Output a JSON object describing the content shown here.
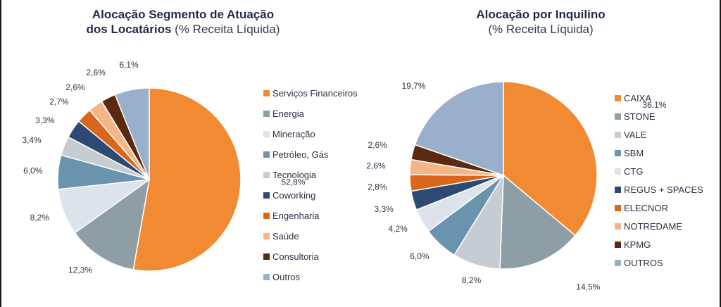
{
  "chart_data": [
    {
      "type": "pie",
      "title": "Alocação Segmento de Atuação dos Locatários",
      "title_line1": "Alocação Segmento de Atuação",
      "title_line2": "dos Locatários",
      "subtitle": "(% Receita Líquida)",
      "categories": [
        "Serviços Financeiros",
        "Energia",
        "Mineração",
        "Petróleo, Gás",
        "Tecnologia",
        "Coworking",
        "Engenharia",
        "Saúde",
        "Consultoria",
        "Outros"
      ],
      "values": [
        52.8,
        12.3,
        8.2,
        6.0,
        3.4,
        3.3,
        2.7,
        2.6,
        2.6,
        6.1
      ],
      "labels": [
        "52,8%",
        "12,3%",
        "8,2%",
        "6,0%",
        "3,4%",
        "3,3%",
        "2,7%",
        "2,6%",
        "2,6%",
        "6,1%"
      ],
      "colors": [
        "#f28a33",
        "#8f9ea6",
        "#dde3ea",
        "#6a93ad",
        "#c5ccd2",
        "#2e4a73",
        "#d9661c",
        "#f5b587",
        "#5a2a10",
        "#9aafcc"
      ],
      "legend_position": "right"
    },
    {
      "type": "pie",
      "title": "Alocação por Inquilino",
      "title_line1": "Alocação por Inquilino",
      "subtitle": "(% Receita Líquida)",
      "categories": [
        "CAIXA",
        "STONE",
        "VALE",
        "SBM",
        "CTG",
        "REGUS + SPACES",
        "ELECNOR",
        "NOTREDAME",
        "KPMG",
        "OUTROS"
      ],
      "values": [
        36.1,
        14.5,
        8.2,
        6.0,
        4.2,
        3.3,
        2.8,
        2.6,
        2.6,
        19.7
      ],
      "labels": [
        "36,1%",
        "14,5%",
        "8,2%",
        "6,0%",
        "4,2%",
        "3,3%",
        "2,8%",
        "2,6%",
        "2,6%",
        "19,7%"
      ],
      "colors": [
        "#f28a33",
        "#8f9ea6",
        "#c5ccd2",
        "#6a93ad",
        "#dde3ea",
        "#2e4a73",
        "#d9661c",
        "#f5b587",
        "#5a2a10",
        "#9aafcc"
      ],
      "legend_position": "right"
    }
  ]
}
